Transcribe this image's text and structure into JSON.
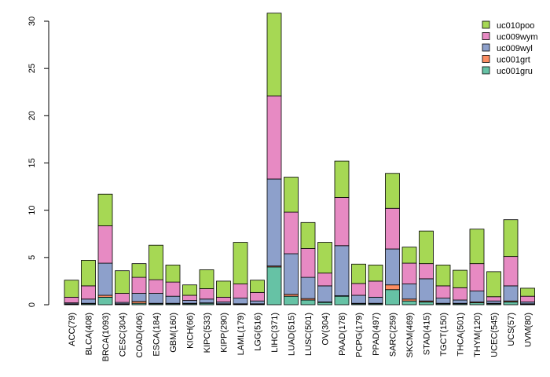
{
  "chart_data": {
    "type": "bar",
    "stacked": true,
    "title": "",
    "xlabel": "",
    "ylabel": "",
    "ylim": [
      0,
      30
    ],
    "yticks": [
      0,
      5,
      10,
      15,
      20,
      25,
      30
    ],
    "grid": false,
    "legend_position": "top-right",
    "categories": [
      "ACC(79)",
      "BLCA(408)",
      "BRCA(1093)",
      "CESC(304)",
      "COAD(406)",
      "ESCA(184)",
      "GBM(160)",
      "KICH(66)",
      "KIPC(533)",
      "KIPP(290)",
      "LAML(179)",
      "LGG(516)",
      "LIHC(371)",
      "LUAD(515)",
      "LUSC(501)",
      "OV(304)",
      "PAAD(178)",
      "PCPG(179)",
      "PPAD(497)",
      "SARC(259)",
      "SKCM(469)",
      "STAD(415)",
      "TGCT(150)",
      "THCA(501)",
      "THYM(120)",
      "UCEC(545)",
      "UCS(57)",
      "UVM(80)"
    ],
    "series": [
      {
        "name": "uc001gru",
        "color": "#66c2a5",
        "values": [
          0.05,
          0.1,
          0.8,
          0.05,
          0.15,
          0.1,
          0.1,
          0.1,
          0.15,
          0.05,
          0.05,
          0.05,
          4.0,
          0.9,
          0.5,
          0.25,
          0.9,
          0.1,
          0.1,
          1.6,
          0.4,
          0.3,
          0.1,
          0.1,
          0.2,
          0.1,
          0.3,
          0.05
        ]
      },
      {
        "name": "uc001grt",
        "color": "#fc8d62",
        "values": [
          0.05,
          0.05,
          0.2,
          0.05,
          0.2,
          0.05,
          0.05,
          0.05,
          0.05,
          0.05,
          0.05,
          0.05,
          0.1,
          0.2,
          0.15,
          0.05,
          0.05,
          0.05,
          0.05,
          0.5,
          0.2,
          0.1,
          0.05,
          0.05,
          0.1,
          0.05,
          0.1,
          0.05
        ]
      },
      {
        "name": "uc009wyl",
        "color": "#8da0cb",
        "values": [
          0.1,
          0.45,
          3.4,
          0.15,
          0.85,
          1.05,
          0.75,
          0.3,
          0.4,
          0.2,
          0.6,
          0.3,
          9.2,
          4.3,
          2.25,
          1.7,
          5.3,
          0.85,
          0.65,
          3.8,
          1.6,
          2.35,
          0.55,
          0.35,
          1.15,
          0.25,
          1.6,
          0.2
        ]
      },
      {
        "name": "uc009wym",
        "color": "#e78ac3",
        "values": [
          0.6,
          1.4,
          3.95,
          0.95,
          1.7,
          1.45,
          1.5,
          0.55,
          1.1,
          0.5,
          1.5,
          0.9,
          8.8,
          4.4,
          3.05,
          1.35,
          5.1,
          1.25,
          1.7,
          4.3,
          2.2,
          1.6,
          1.3,
          1.3,
          2.9,
          0.45,
          3.1,
          0.6
        ]
      },
      {
        "name": "uc010poo",
        "color": "#a6d854",
        "values": [
          1.8,
          2.7,
          3.35,
          2.4,
          1.45,
          3.65,
          1.8,
          1.1,
          2.0,
          1.7,
          4.4,
          1.3,
          8.75,
          3.7,
          2.75,
          3.25,
          3.85,
          2.05,
          1.7,
          3.7,
          1.7,
          3.45,
          2.2,
          1.85,
          3.65,
          2.65,
          3.9,
          0.85
        ]
      }
    ]
  }
}
